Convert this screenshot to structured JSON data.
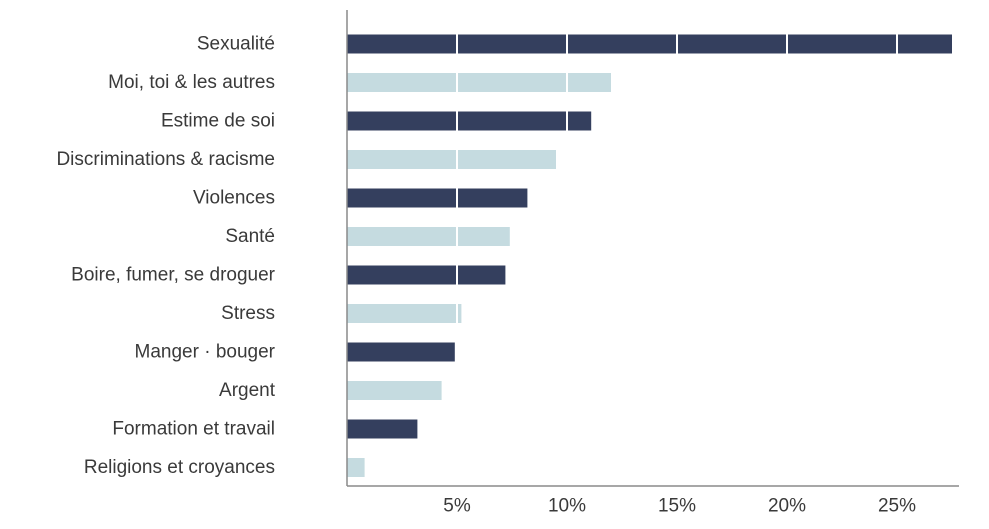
{
  "chart_data": {
    "type": "bar",
    "orientation": "horizontal",
    "categories": [
      "Sexualité",
      "Moi, toi & les autres",
      "Estime de soi",
      "Discriminations & racisme",
      "Violences",
      "Santé",
      "Boire, fumer, se droguer",
      "Stress",
      "Manger · bouger",
      "Argent",
      "Formation et travail",
      "Religions et croyances"
    ],
    "values": [
      27.5,
      12.0,
      11.1,
      9.5,
      8.2,
      7.4,
      7.2,
      5.2,
      4.9,
      4.3,
      3.2,
      0.8
    ],
    "xlim": [
      0,
      28
    ],
    "xticks": [
      5,
      10,
      15,
      20,
      25
    ],
    "xtick_labels": [
      "5%",
      "10%",
      "15%",
      "20%",
      "25%"
    ],
    "grid": "vertical lines drawn over bars",
    "legend": "none",
    "title": "",
    "xlabel": "",
    "ylabel": "",
    "colors": {
      "dark": "#343f5e",
      "light": "#c5dbe0",
      "axis": "#8a8a8a",
      "grid": "#ffffff",
      "text": "#3a3a3a"
    }
  }
}
